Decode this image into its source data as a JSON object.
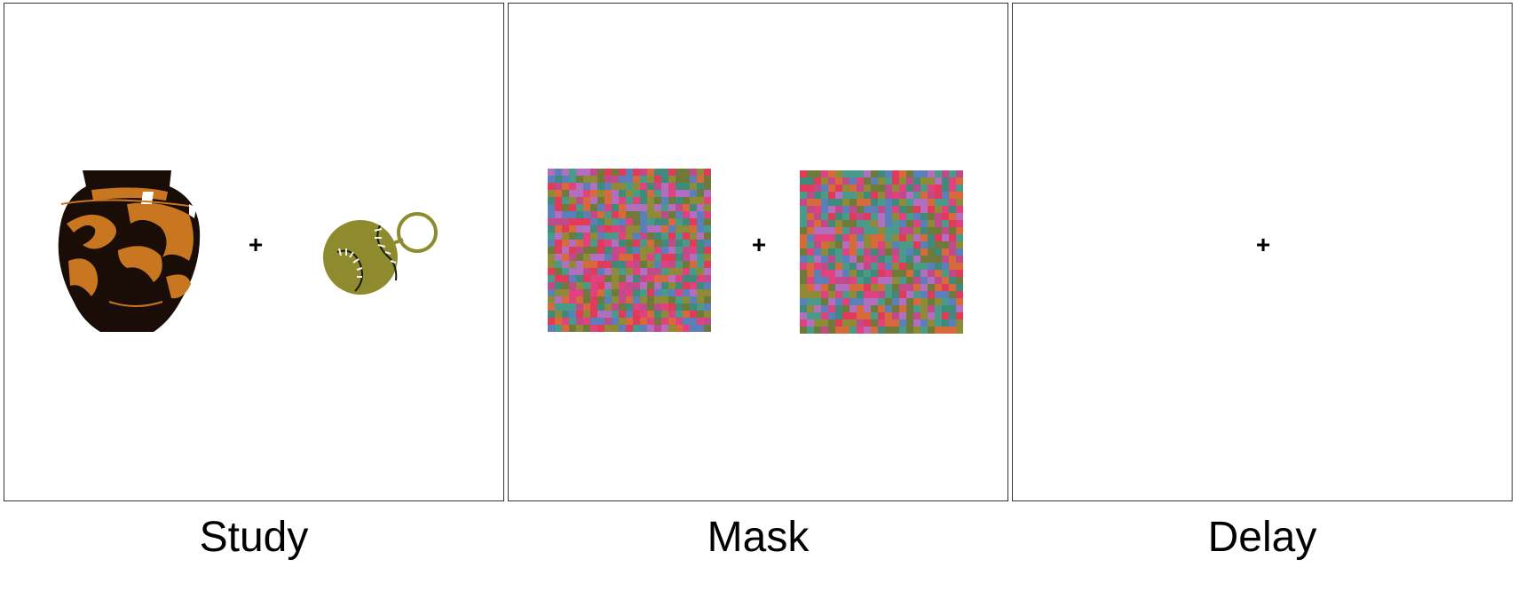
{
  "panels": [
    {
      "id": "study",
      "label": "Study",
      "fixation": "+",
      "left_item": "vase-icon",
      "right_item": "baseball-keychain-icon"
    },
    {
      "id": "mask",
      "label": "Mask",
      "fixation": "+",
      "left_item": "noise-mask",
      "right_item": "noise-mask"
    },
    {
      "id": "delay",
      "label": "Delay",
      "fixation": "+"
    }
  ],
  "colors": {
    "vase_orange": "#c8761f",
    "vase_dark": "#1a0c06",
    "ball_olive": "#8e8b2f",
    "mask_palette": [
      "#e0427f",
      "#c04a8a",
      "#3f8a7a",
      "#5b7fb8",
      "#8f8a38",
      "#d76a3a",
      "#b26fc0",
      "#e23a5a",
      "#6f7a3a",
      "#4a9a8a"
    ]
  }
}
